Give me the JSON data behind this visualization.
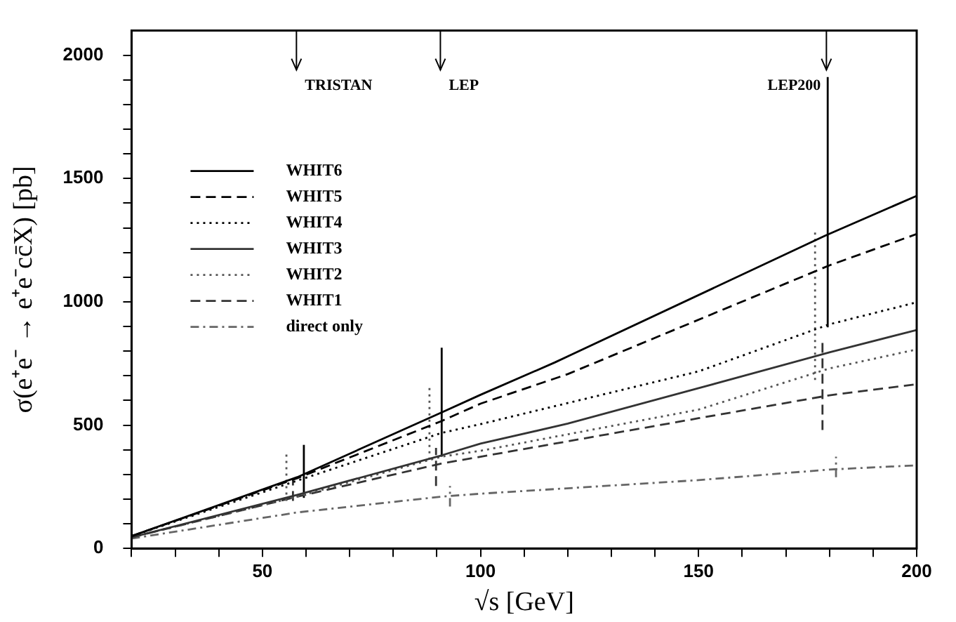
{
  "chart_data": {
    "type": "line",
    "xlabel": "√s [GeV]",
    "ylabel": "σ(e⁺e⁻ → e⁺e⁻cc̄X) [pb]",
    "xlim": [
      20,
      200
    ],
    "ylim": [
      0,
      2100
    ],
    "xticks": [
      {
        "value": 20,
        "label": null
      },
      {
        "value": 30,
        "label": null
      },
      {
        "value": 40,
        "label": null
      },
      50,
      {
        "value": 60,
        "label": null
      },
      {
        "value": 70,
        "label": null
      },
      {
        "value": 80,
        "label": null
      },
      {
        "value": 90,
        "label": null
      },
      100,
      {
        "value": 110,
        "label": null
      },
      {
        "value": 120,
        "label": null
      },
      {
        "value": 130,
        "label": null
      },
      {
        "value": 140,
        "label": null
      },
      150,
      {
        "value": 160,
        "label": null
      },
      {
        "value": 170,
        "label": null
      },
      {
        "value": 180,
        "label": null
      },
      {
        "value": 190,
        "label": null
      },
      200
    ],
    "yticks": [
      0,
      {
        "value": 100,
        "label": null
      },
      {
        "value": 200,
        "label": null
      },
      {
        "value": 300,
        "label": null
      },
      {
        "value": 400,
        "label": null
      },
      500,
      {
        "value": 600,
        "label": null
      },
      {
        "value": 700,
        "label": null
      },
      {
        "value": 800,
        "label": null
      },
      {
        "value": 900,
        "label": null
      },
      1000,
      {
        "value": 1100,
        "label": null
      },
      {
        "value": 1200,
        "label": null
      },
      {
        "value": 1300,
        "label": null
      },
      {
        "value": 1400,
        "label": null
      },
      1500,
      {
        "value": 1600,
        "label": null
      },
      {
        "value": 1700,
        "label": null
      },
      {
        "value": 1800,
        "label": null
      },
      {
        "value": 1900,
        "label": null
      },
      2000
    ],
    "grid": false,
    "legend": "top left",
    "marker": "none",
    "series": [
      {
        "name": "WHIT6",
        "color": "#000000",
        "line_style": "solid",
        "x": [
          20,
          58,
          91,
          100,
          117,
          179,
          200
        ],
        "values": [
          50,
          289,
          551,
          623,
          754,
          1268,
          1430
        ]
      },
      {
        "name": "WHIT5",
        "color": "#000000",
        "line_style": "dashed",
        "x": [
          20,
          58,
          91,
          100,
          120,
          180,
          200
        ],
        "values": [
          50,
          285,
          516,
          587,
          707,
          1148,
          1275
        ]
      },
      {
        "name": "WHIT4",
        "color": "#000000",
        "line_style": "dotted",
        "x": [
          20,
          58,
          91,
          100,
          150,
          180,
          200
        ],
        "values": [
          50,
          275,
          468,
          504,
          718,
          909,
          998
        ]
      },
      {
        "name": "WHIT3",
        "color": "#333333",
        "line_style": "solid",
        "x": [
          20,
          58,
          91,
          100,
          120,
          150,
          180,
          200
        ],
        "values": [
          45,
          217,
          377,
          425,
          506,
          650,
          795,
          886
        ]
      },
      {
        "name": "WHIT2",
        "color": "#555555",
        "line_style": "dotted",
        "x": [
          20,
          58,
          91,
          100,
          150,
          180,
          200
        ],
        "values": [
          45,
          210,
          372,
          396,
          563,
          730,
          807
        ]
      },
      {
        "name": "WHIT1",
        "color": "#333333",
        "line_style": "dashed",
        "x": [
          20,
          58,
          91,
          100,
          150,
          180,
          200
        ],
        "values": [
          45,
          210,
          344,
          372,
          528,
          621,
          666
        ]
      },
      {
        "name": "direct only",
        "color": "#666666",
        "line_style": "dashdot",
        "x": [
          20,
          58,
          91,
          100,
          150,
          180,
          200
        ],
        "values": [
          40,
          146,
          210,
          222,
          277,
          320,
          337
        ]
      },
      {
        "color": "#000000",
        "line_style": "solid",
        "x": [
          59.5,
          59.5
        ],
        "values": [
          205,
          420
        ]
      },
      {
        "color": "#000000",
        "line_style": "solid",
        "x": [
          91.1,
          91.1
        ],
        "values": [
          372,
          814
        ]
      },
      {
        "color": "#000000",
        "line_style": "solid",
        "x": [
          179.6,
          179.6
        ],
        "values": [
          897,
          1912
        ]
      },
      {
        "color": "#555555",
        "line_style": "dotted",
        "x": [
          55.5,
          55.5
        ],
        "values": [
          193,
          384
        ]
      },
      {
        "color": "#555555",
        "line_style": "dotted",
        "x": [
          88.3,
          88.3
        ],
        "values": [
          360,
          663
        ]
      },
      {
        "color": "#555555",
        "line_style": "dotted",
        "x": [
          176.7,
          176.7
        ],
        "values": [
          683,
          1291
        ]
      },
      {
        "color": "#333333",
        "line_style": "dashed",
        "x": [
          57,
          57
        ],
        "values": [
          193,
          277
        ]
      },
      {
        "color": "#333333",
        "line_style": "dashed",
        "x": [
          89.8,
          89.8
        ],
        "values": [
          253,
          408
        ]
      },
      {
        "color": "#333333",
        "line_style": "dashed",
        "x": [
          178.4,
          178.4
        ],
        "values": [
          480,
          838
        ]
      },
      {
        "color": "#666666",
        "line_style": "dashdot",
        "x": [
          93,
          93
        ],
        "values": [
          170,
          253
        ]
      },
      {
        "color": "#666666",
        "line_style": "dashdot",
        "x": [
          181.5,
          181.5
        ],
        "values": [
          289,
          372
        ]
      }
    ],
    "ref_lines": [
      {
        "axis": "x",
        "value": 57.8,
        "label": "TRISTAN"
      },
      {
        "axis": "x",
        "value": 90.8,
        "label": "LEP"
      },
      {
        "axis": "x",
        "value": 179.3,
        "label": "LEP200"
      }
    ]
  }
}
